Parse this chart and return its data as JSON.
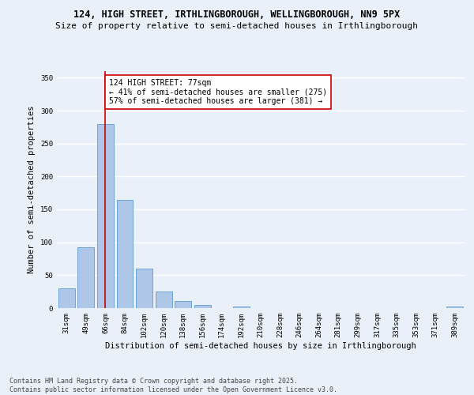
{
  "title_line1": "124, HIGH STREET, IRTHLINGBOROUGH, WELLINGBOROUGH, NN9 5PX",
  "title_line2": "Size of property relative to semi-detached houses in Irthlingborough",
  "xlabel": "Distribution of semi-detached houses by size in Irthlingborough",
  "ylabel": "Number of semi-detached properties",
  "categories": [
    "31sqm",
    "49sqm",
    "66sqm",
    "84sqm",
    "102sqm",
    "120sqm",
    "138sqm",
    "156sqm",
    "174sqm",
    "192sqm",
    "210sqm",
    "228sqm",
    "246sqm",
    "264sqm",
    "281sqm",
    "299sqm",
    "317sqm",
    "335sqm",
    "353sqm",
    "371sqm",
    "389sqm"
  ],
  "values": [
    30,
    93,
    280,
    165,
    60,
    25,
    11,
    5,
    0,
    3,
    0,
    0,
    0,
    0,
    0,
    0,
    0,
    0,
    0,
    0,
    2
  ],
  "bar_color": "#aec6e8",
  "bar_edge_color": "#5b9bd5",
  "background_color": "#eaf0fa",
  "grid_color": "#ffffff",
  "property_bar_index": 2,
  "vline_color": "#cc0000",
  "annotation_text": "124 HIGH STREET: 77sqm\n← 41% of semi-detached houses are smaller (275)\n57% of semi-detached houses are larger (381) →",
  "annotation_box_color": "#ffffff",
  "annotation_box_edge": "#cc0000",
  "ylim": [
    0,
    360
  ],
  "yticks": [
    0,
    50,
    100,
    150,
    200,
    250,
    300,
    350
  ],
  "footer_line1": "Contains HM Land Registry data © Crown copyright and database right 2025.",
  "footer_line2": "Contains public sector information licensed under the Open Government Licence v3.0.",
  "title_fontsize": 8.5,
  "subtitle_fontsize": 8.0,
  "axis_label_fontsize": 7.5,
  "tick_fontsize": 6.5,
  "annotation_fontsize": 7.0,
  "footer_fontsize": 6.0
}
